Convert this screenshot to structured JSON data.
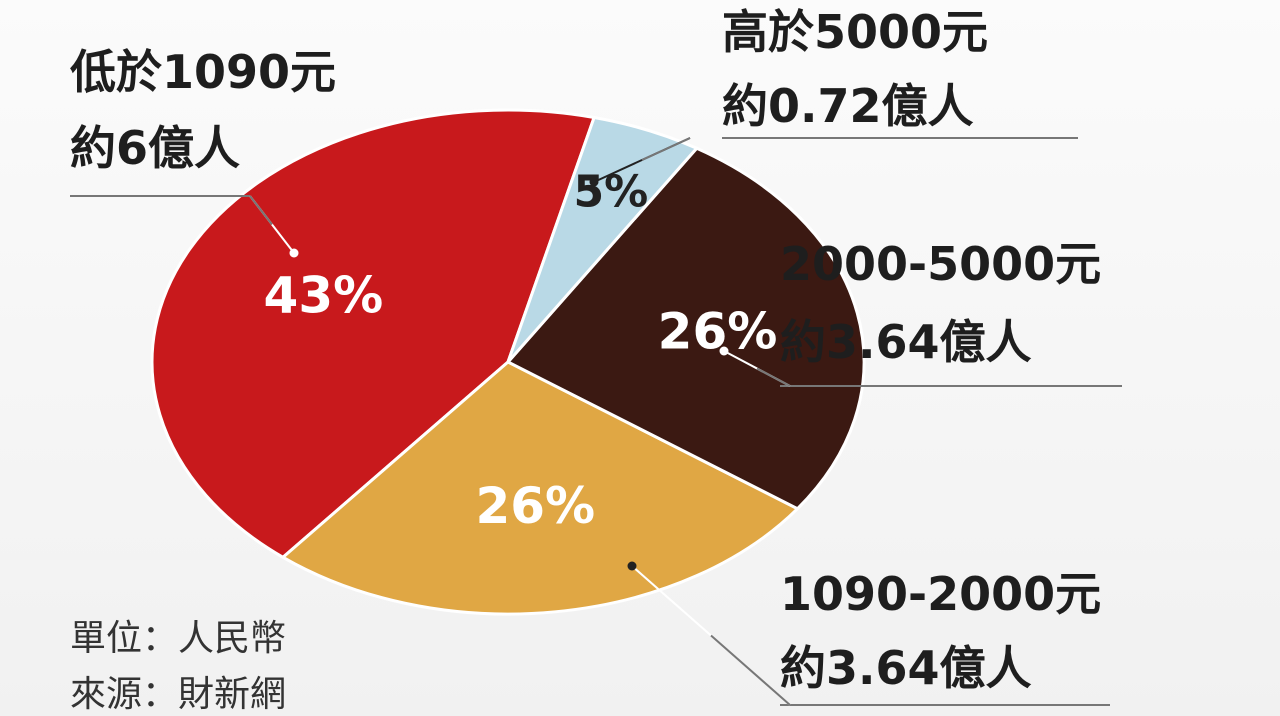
{
  "chart_data": {
    "type": "pie",
    "title": "",
    "slices": [
      {
        "range": "低於1090元",
        "population": "約6億人",
        "percent_label": "43%",
        "value": 43,
        "color": "#c8191c"
      },
      {
        "range": "高於5000元",
        "population": "約0.72億人",
        "percent_label": "5%",
        "value": 5,
        "color": "#b9d9e6"
      },
      {
        "range": "2000-5000元",
        "population": "約3.64億人",
        "percent_label": "26%",
        "value": 26,
        "color": "#3b1912"
      },
      {
        "range": "1090-2000元",
        "population": "約3.64億人",
        "percent_label": "26%",
        "value": 26,
        "color": "#e0a744"
      }
    ]
  },
  "notes": {
    "unit": "單位：人民幣",
    "source": "來源：財新網"
  }
}
